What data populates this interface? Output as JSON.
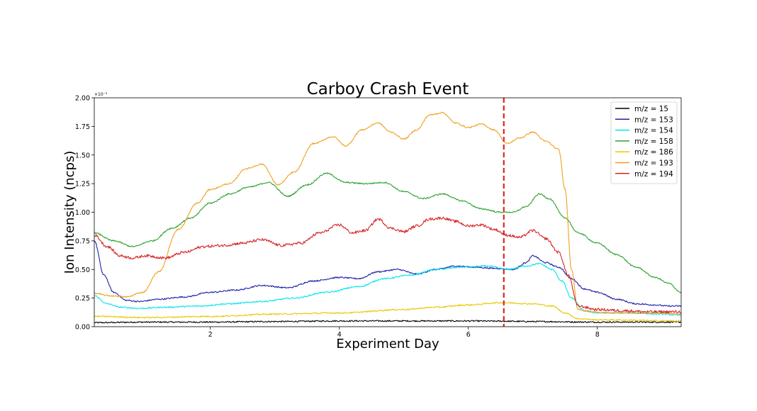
{
  "chart_data": {
    "type": "line",
    "title": "Carboy Crash Event",
    "xlabel": "Experiment Day",
    "ylabel": "Ion Intensity (ncps)",
    "y_exponent_label": "×10⁻³",
    "xlim": [
      0.2,
      9.3
    ],
    "ylim": [
      0,
      2.0
    ],
    "y_scale_factor": "1e-3",
    "x_ticks": [
      2,
      4,
      6,
      8
    ],
    "x_tick_labels": [
      "2",
      "4",
      "6",
      "8"
    ],
    "y_ticks": [
      0.0,
      0.25,
      0.5,
      0.75,
      1.0,
      1.25,
      1.5,
      1.75,
      2.0
    ],
    "y_tick_labels": [
      "0.00",
      "0.25",
      "0.50",
      "0.75",
      "1.00",
      "1.25",
      "1.50",
      "1.75",
      "2.00"
    ],
    "grid": false,
    "legend_position": "top-right",
    "vline": {
      "x": 6.55,
      "color": "#d62728",
      "style": "dashed"
    },
    "series": [
      {
        "name": "m/z = 15",
        "color": "#000000",
        "x": [
          0.2,
          1.0,
          2.0,
          3.0,
          4.0,
          5.0,
          6.0,
          6.5,
          7.0,
          8.0,
          9.3
        ],
        "y": [
          0.035,
          0.04,
          0.04,
          0.045,
          0.05,
          0.05,
          0.05,
          0.048,
          0.045,
          0.04,
          0.04
        ]
      },
      {
        "name": "m/z = 153",
        "color": "#1f1fa8",
        "x": [
          0.2,
          0.35,
          0.5,
          0.7,
          0.9,
          1.2,
          1.6,
          2.0,
          2.4,
          2.8,
          3.2,
          3.6,
          4.0,
          4.3,
          4.6,
          4.9,
          5.2,
          5.5,
          5.8,
          6.1,
          6.4,
          6.7,
          6.9,
          7.0,
          7.2,
          7.4,
          7.6,
          7.8,
          8.0,
          8.3,
          8.6,
          8.9,
          9.1,
          9.3
        ],
        "y": [
          0.75,
          0.45,
          0.3,
          0.23,
          0.22,
          0.24,
          0.26,
          0.3,
          0.32,
          0.36,
          0.34,
          0.4,
          0.43,
          0.42,
          0.48,
          0.5,
          0.46,
          0.5,
          0.53,
          0.52,
          0.51,
          0.5,
          0.56,
          0.62,
          0.56,
          0.52,
          0.42,
          0.33,
          0.3,
          0.24,
          0.2,
          0.19,
          0.18,
          0.18
        ]
      },
      {
        "name": "m/z = 154",
        "color": "#00e5ee",
        "x": [
          0.2,
          0.4,
          0.6,
          0.9,
          1.3,
          1.8,
          2.3,
          2.8,
          3.3,
          3.8,
          4.3,
          4.7,
          5.1,
          5.5,
          5.9,
          6.3,
          6.6,
          6.9,
          7.1,
          7.3,
          7.45,
          7.6,
          7.8,
          8.0,
          8.5,
          9.0,
          9.3
        ],
        "y": [
          0.27,
          0.2,
          0.17,
          0.16,
          0.17,
          0.18,
          0.2,
          0.22,
          0.25,
          0.3,
          0.35,
          0.42,
          0.45,
          0.5,
          0.52,
          0.53,
          0.5,
          0.53,
          0.55,
          0.5,
          0.4,
          0.25,
          0.14,
          0.12,
          0.12,
          0.11,
          0.1
        ]
      },
      {
        "name": "m/z = 158",
        "color": "#2ca02c",
        "x": [
          0.2,
          0.5,
          0.8,
          1.1,
          1.4,
          1.7,
          2.0,
          2.3,
          2.6,
          2.9,
          3.2,
          3.5,
          3.8,
          4.1,
          4.4,
          4.7,
          5.0,
          5.3,
          5.6,
          5.9,
          6.2,
          6.5,
          6.7,
          6.9,
          7.1,
          7.25,
          7.5,
          7.7,
          8.0,
          8.3,
          8.6,
          8.9,
          9.1,
          9.3
        ],
        "y": [
          0.82,
          0.75,
          0.7,
          0.75,
          0.86,
          0.95,
          1.08,
          1.16,
          1.22,
          1.26,
          1.14,
          1.24,
          1.34,
          1.26,
          1.25,
          1.26,
          1.18,
          1.12,
          1.16,
          1.1,
          1.03,
          1.0,
          1.0,
          1.05,
          1.16,
          1.12,
          0.95,
          0.82,
          0.73,
          0.63,
          0.52,
          0.43,
          0.38,
          0.3
        ]
      },
      {
        "name": "m/z = 186",
        "color": "#e8c800",
        "x": [
          0.2,
          1.0,
          2.0,
          3.0,
          4.0,
          5.0,
          5.5,
          6.0,
          6.5,
          7.0,
          7.3,
          7.5,
          7.7,
          8.0,
          9.3
        ],
        "y": [
          0.09,
          0.08,
          0.09,
          0.11,
          0.12,
          0.15,
          0.17,
          0.19,
          0.21,
          0.2,
          0.18,
          0.12,
          0.07,
          0.06,
          0.05
        ]
      },
      {
        "name": "m/z = 193",
        "color": "#f0a020",
        "x": [
          0.2,
          0.45,
          0.7,
          0.95,
          1.2,
          1.5,
          1.8,
          2.0,
          2.3,
          2.55,
          2.8,
          3.05,
          3.3,
          3.6,
          3.9,
          4.1,
          4.35,
          4.6,
          4.8,
          5.0,
          5.2,
          5.4,
          5.6,
          5.8,
          6.0,
          6.2,
          6.4,
          6.6,
          6.8,
          7.0,
          7.2,
          7.4,
          7.5,
          7.6,
          7.7,
          7.9,
          8.2,
          8.6,
          9.0,
          9.3
        ],
        "y": [
          0.29,
          0.27,
          0.26,
          0.3,
          0.48,
          0.85,
          1.08,
          1.2,
          1.25,
          1.38,
          1.42,
          1.24,
          1.35,
          1.6,
          1.66,
          1.58,
          1.72,
          1.78,
          1.7,
          1.64,
          1.72,
          1.85,
          1.87,
          1.78,
          1.74,
          1.77,
          1.72,
          1.6,
          1.65,
          1.7,
          1.62,
          1.55,
          1.2,
          0.5,
          0.15,
          0.13,
          0.12,
          0.12,
          0.12,
          0.11
        ]
      },
      {
        "name": "m/z = 194",
        "color": "#d62728",
        "x": [
          0.2,
          0.4,
          0.6,
          0.8,
          1.0,
          1.3,
          1.6,
          1.9,
          2.2,
          2.5,
          2.8,
          3.1,
          3.4,
          3.7,
          4.0,
          4.2,
          4.4,
          4.6,
          4.8,
          5.0,
          5.2,
          5.4,
          5.6,
          5.8,
          6.0,
          6.2,
          6.4,
          6.6,
          6.8,
          7.0,
          7.2,
          7.4,
          7.55,
          7.7,
          8.0,
          8.4,
          8.8,
          9.3
        ],
        "y": [
          0.8,
          0.7,
          0.62,
          0.6,
          0.62,
          0.6,
          0.65,
          0.7,
          0.71,
          0.73,
          0.76,
          0.71,
          0.73,
          0.82,
          0.89,
          0.82,
          0.84,
          0.94,
          0.86,
          0.83,
          0.88,
          0.94,
          0.95,
          0.92,
          0.88,
          0.89,
          0.85,
          0.8,
          0.78,
          0.84,
          0.77,
          0.65,
          0.45,
          0.18,
          0.15,
          0.14,
          0.13,
          0.13
        ]
      }
    ]
  }
}
